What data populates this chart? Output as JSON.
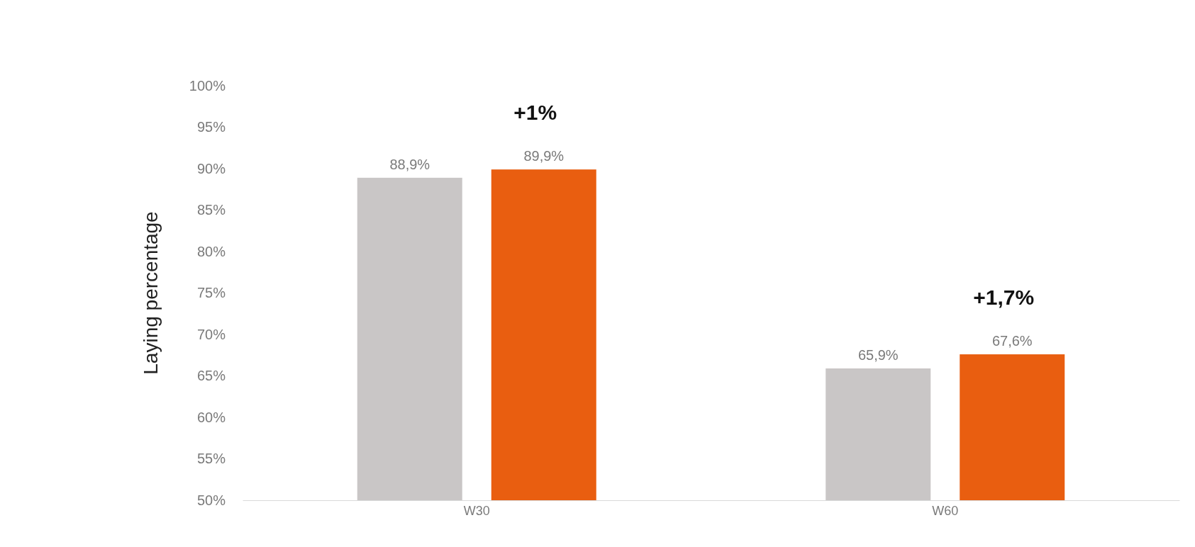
{
  "chart_data": {
    "type": "bar",
    "ylabel": "Laying percentage",
    "categories": [
      "W30",
      "W60"
    ],
    "series": [
      {
        "color": "#c9c6c6",
        "values": [
          88.9,
          65.9
        ],
        "value_labels": [
          "88,9%",
          "65,9%"
        ]
      },
      {
        "color": "#e95e10",
        "values": [
          89.9,
          67.6
        ],
        "value_labels": [
          "89,9%",
          "67,6%"
        ]
      }
    ],
    "ylim": [
      50,
      100
    ],
    "yticks": [
      {
        "value": 50,
        "label": "50%"
      },
      {
        "value": 55,
        "label": "55%"
      },
      {
        "value": 60,
        "label": "60%"
      },
      {
        "value": 65,
        "label": "65%"
      },
      {
        "value": 70,
        "label": "70%"
      },
      {
        "value": 75,
        "label": "75%"
      },
      {
        "value": 80,
        "label": "80%"
      },
      {
        "value": 85,
        "label": "85%"
      },
      {
        "value": 90,
        "label": "90%"
      },
      {
        "value": 95,
        "label": "95%"
      },
      {
        "value": 100,
        "label": "100%"
      }
    ],
    "annotations": [
      "+1%",
      "+1,7%"
    ],
    "grid": false,
    "legend": false
  }
}
